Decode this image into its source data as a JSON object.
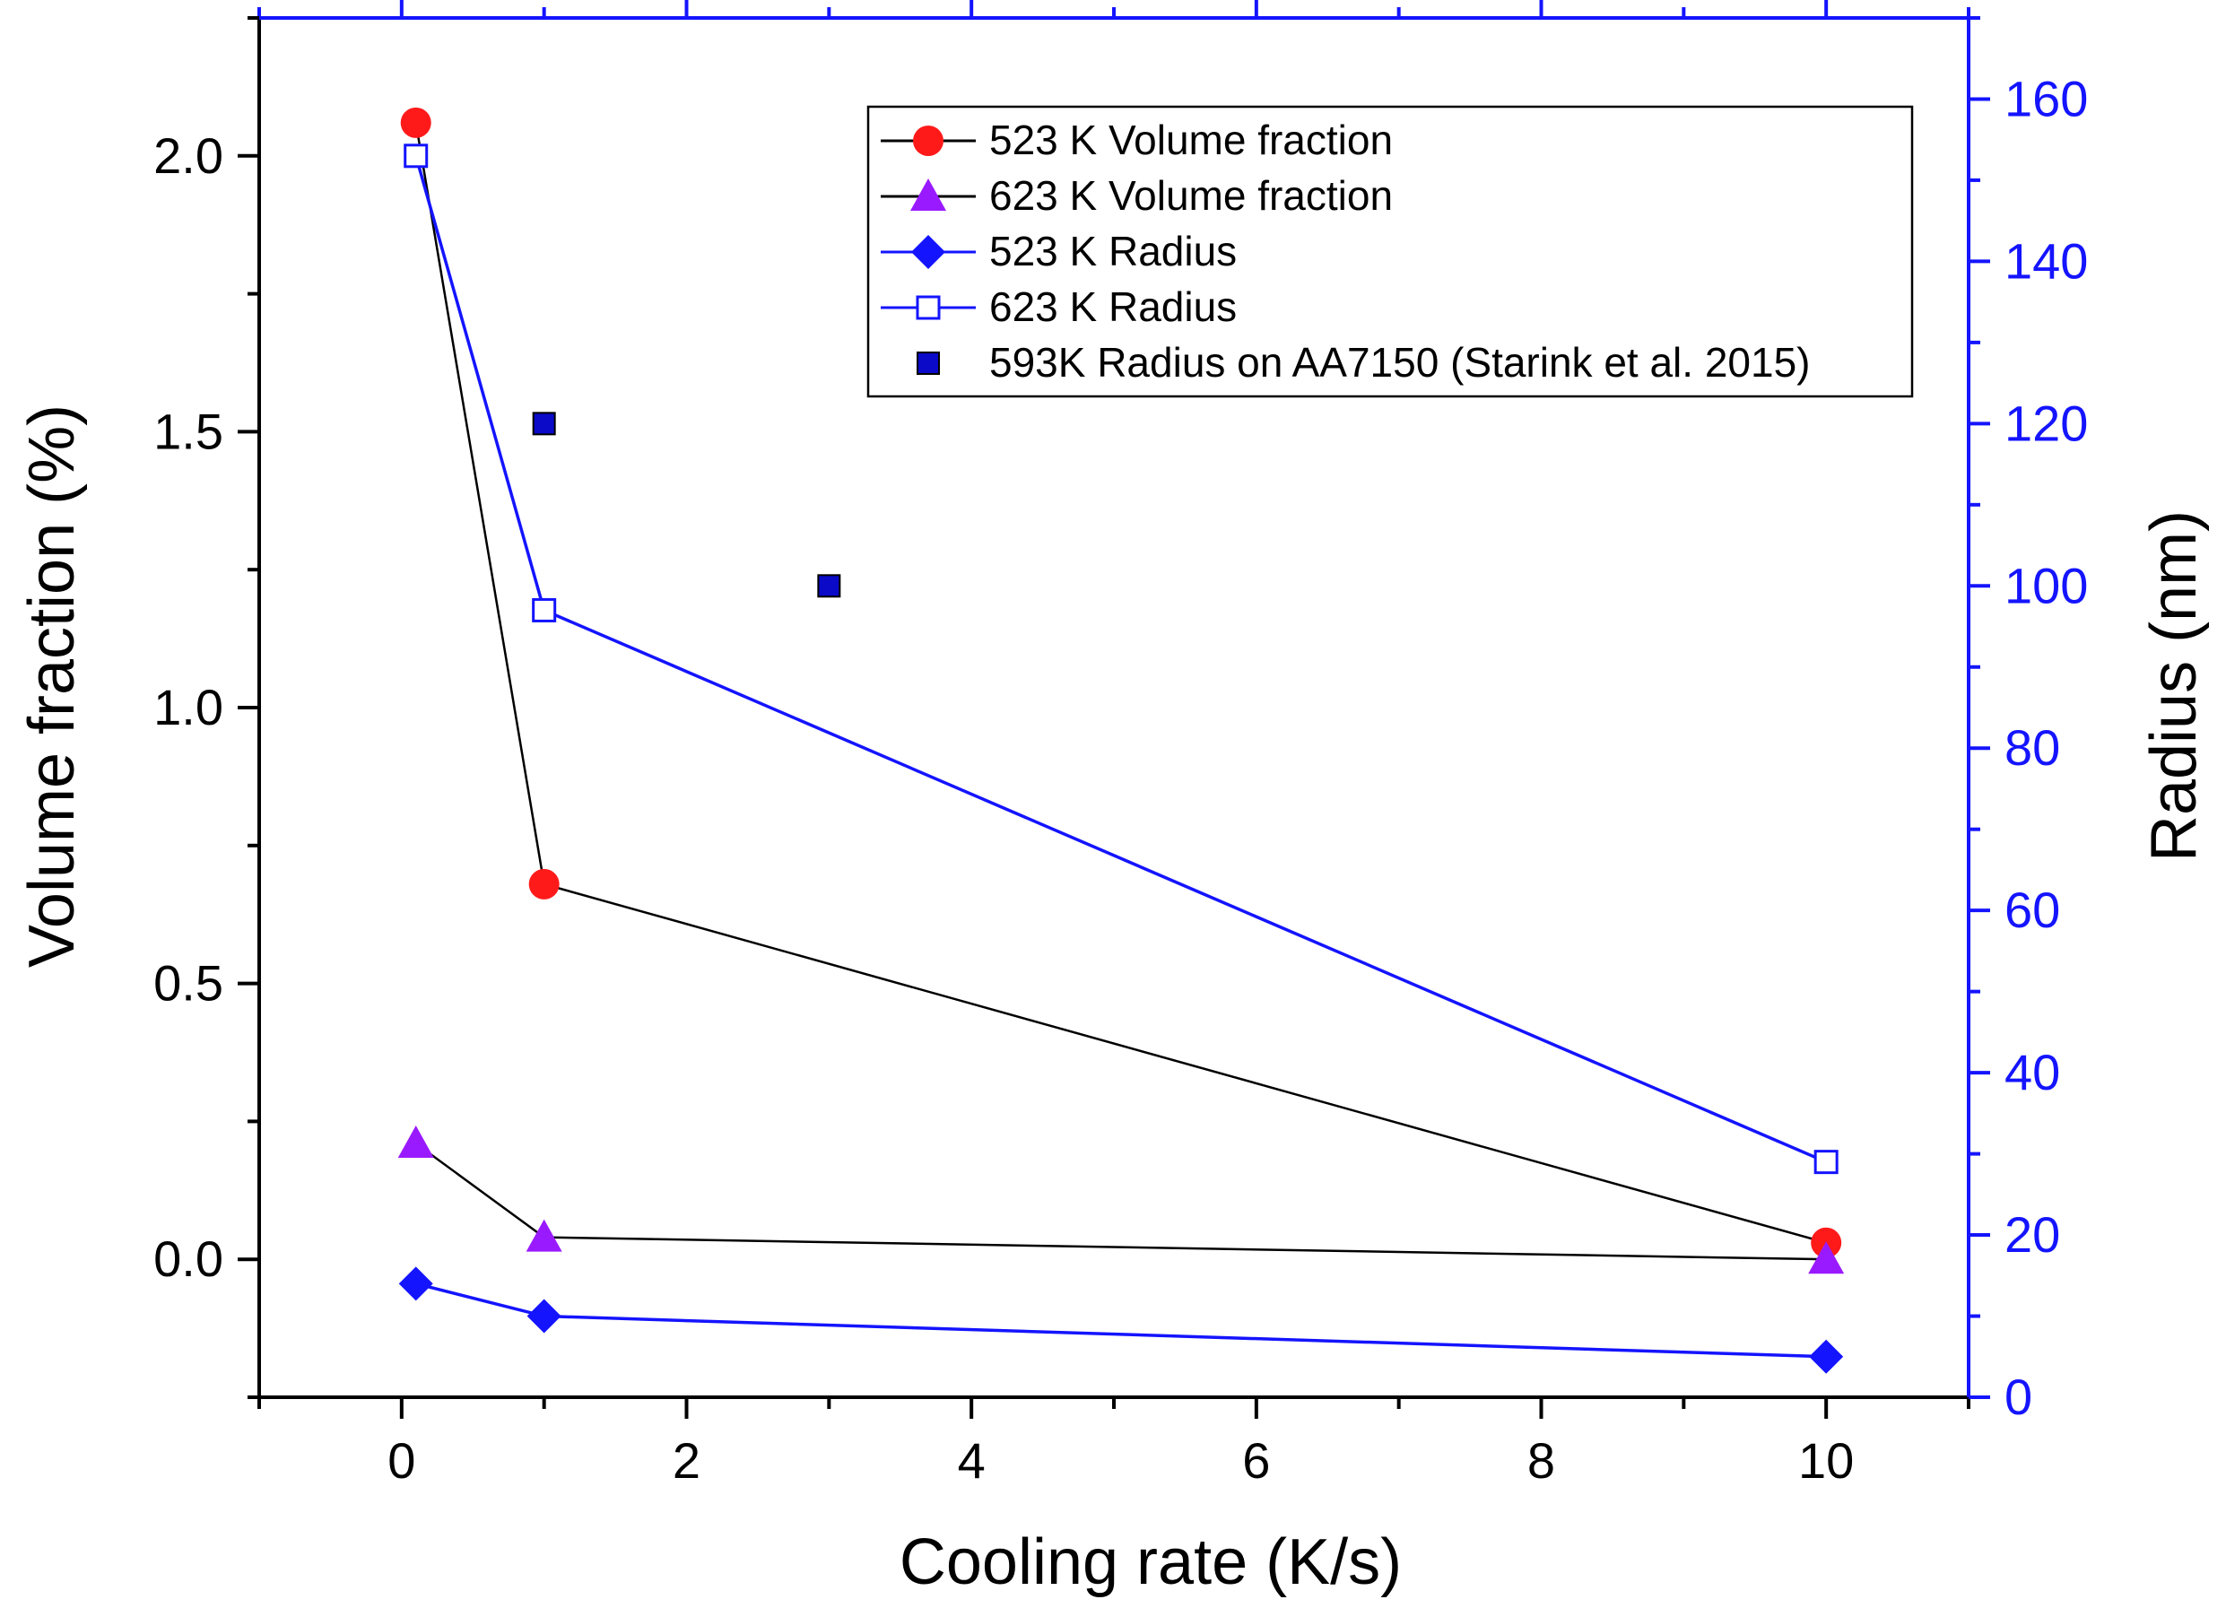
{
  "chart_data": {
    "type": "line",
    "xlabel": "Cooling rate (K/s)",
    "ylabel": "Volume fraction (%)",
    "y2label": "Radius (nm)",
    "xlim": [
      -1,
      11
    ],
    "ylim": [
      -0.25,
      2.25
    ],
    "y2lim": [
      0,
      170
    ],
    "xticks": [
      0,
      2,
      4,
      6,
      8,
      10
    ],
    "yticks": [
      0.0,
      0.5,
      1.0,
      1.5,
      2.0
    ],
    "yticklabels": [
      "0.0",
      "0.5",
      "1.0",
      "1.5",
      "2.0"
    ],
    "y2ticks": [
      0,
      20,
      40,
      60,
      80,
      100,
      120,
      140,
      160
    ],
    "legend_position": "top-right",
    "colors": {
      "left_axis": "#000000",
      "right_axis": "#1414ff",
      "red": "#ff1a1a",
      "violet": "#9a1aff",
      "blue": "#1414ff",
      "navy": "#0a0ac8"
    },
    "series": [
      {
        "name": "523 K Volume fraction",
        "axis": "left",
        "marker": "circle",
        "marker_color": "#ff1a1a",
        "line_color": "#000000",
        "x": [
          0.1,
          1,
          10
        ],
        "y": [
          2.06,
          0.68,
          0.03
        ]
      },
      {
        "name": "623 K Volume fraction",
        "axis": "left",
        "marker": "triangle",
        "marker_color": "#9a1aff",
        "line_color": "#000000",
        "x": [
          0.1,
          1,
          10
        ],
        "y": [
          0.21,
          0.04,
          0.0
        ]
      },
      {
        "name": "523 K Radius",
        "axis": "right",
        "marker": "diamond",
        "marker_color": "#1414ff",
        "line_color": "#1414ff",
        "x": [
          0.1,
          1,
          10
        ],
        "y": [
          14,
          10,
          5
        ]
      },
      {
        "name": "623 K Radius",
        "axis": "right",
        "marker": "open-square",
        "marker_color": "#1414ff",
        "line_color": "#1414ff",
        "x": [
          0.1,
          1,
          10
        ],
        "y": [
          153,
          97,
          29
        ]
      },
      {
        "name": "593K Radius on AA7150 (Starink et al. 2015)",
        "axis": "right",
        "marker": "filled-square",
        "marker_color": "#0a0ac8",
        "line_color": "none",
        "x": [
          1,
          3
        ],
        "y": [
          120,
          100
        ]
      }
    ]
  }
}
